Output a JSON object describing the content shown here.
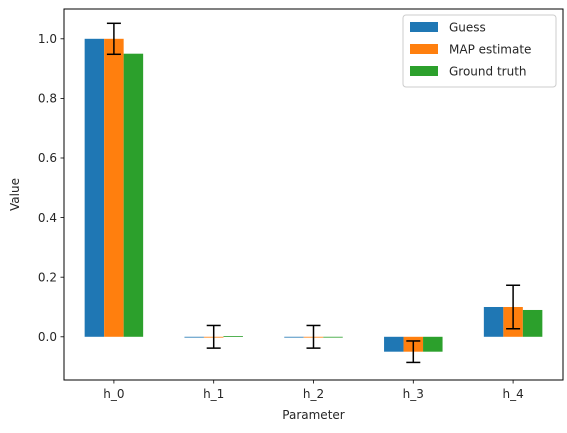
{
  "chart_data": {
    "type": "bar",
    "xlabel": "Parameter",
    "ylabel": "Value",
    "categories": [
      "h_0",
      "h_1",
      "h_2",
      "h_3",
      "h_4"
    ],
    "ylim": [
      -0.145,
      1.1
    ],
    "yticks": [
      0.0,
      0.2,
      0.4,
      0.6,
      0.8,
      1.0
    ],
    "ytick_labels": [
      "0.0",
      "0.2",
      "0.4",
      "0.6",
      "0.8",
      "1.0"
    ],
    "legend_position": "top-right",
    "grid": false,
    "series": [
      {
        "name": "Guess",
        "color": "#1f77b4",
        "values": [
          1.0,
          0.0,
          0.0,
          -0.05,
          0.1
        ]
      },
      {
        "name": "MAP estimate",
        "color": "#ff7f0e",
        "values": [
          1.0,
          0.0,
          0.0,
          -0.05,
          0.1
        ],
        "error": [
          0.052,
          0.038,
          0.038,
          0.036,
          0.073
        ]
      },
      {
        "name": "Ground truth",
        "color": "#2ca02c",
        "values": [
          0.95,
          0.002,
          -0.002,
          -0.05,
          0.09
        ]
      }
    ]
  }
}
